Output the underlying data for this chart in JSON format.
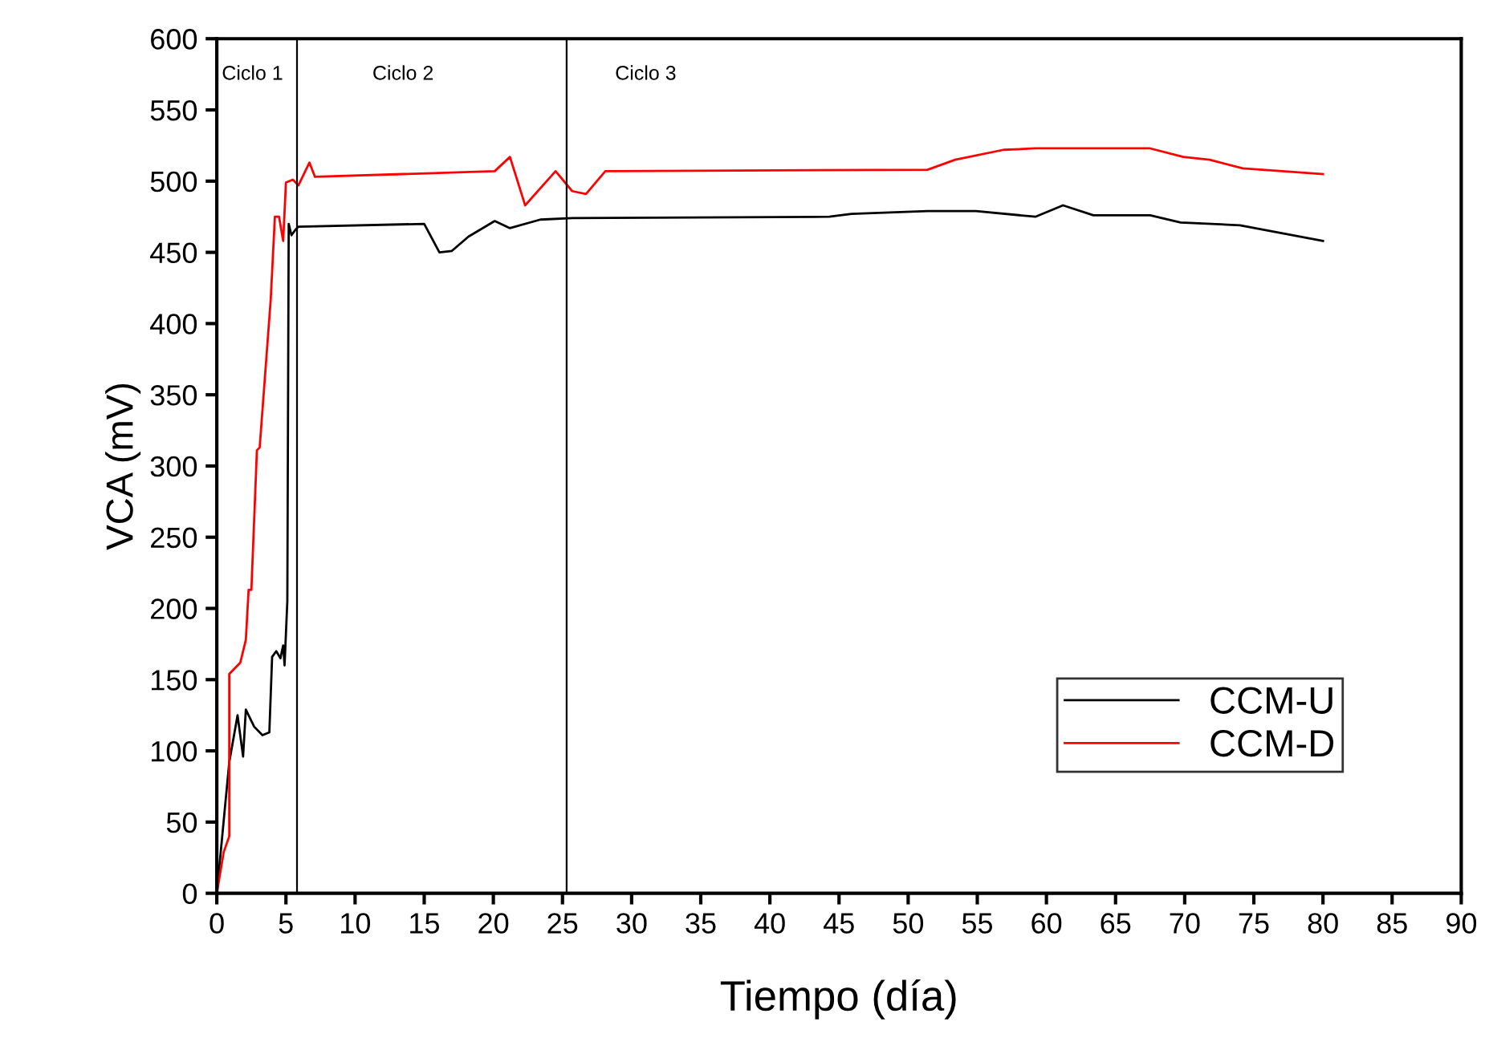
{
  "chart_data": {
    "type": "line",
    "xlabel": "Tiempo (día)",
    "ylabel": "VCA (mV)",
    "xlim": [
      0,
      90
    ],
    "xticks": [
      0,
      5,
      10,
      15,
      20,
      25,
      30,
      35,
      40,
      45,
      50,
      55,
      60,
      65,
      70,
      75,
      80,
      85,
      90
    ],
    "ylim": [
      0,
      600
    ],
    "yticks": [
      0,
      50,
      100,
      150,
      200,
      250,
      300,
      350,
      400,
      450,
      500,
      550,
      600
    ],
    "grid": false,
    "legend": "lower right",
    "marker": "none",
    "line_style": "solid",
    "series": [
      {
        "name": "CCM-U",
        "color": "#000000",
        "x": [
          0,
          0.9,
          1.5,
          1.9,
          2.1,
          2.7,
          3.3,
          3.8,
          4.0,
          4.3,
          4.6,
          4.8,
          4.9,
          5.1,
          5.2,
          5.4,
          5.7,
          5.9,
          15.0,
          16.1,
          17.0,
          18.2,
          20.1,
          21.2,
          23.4,
          25.7,
          44.3,
          45.9,
          51.4,
          54.9,
          59.2,
          61.2,
          63.4,
          67.5,
          69.7,
          74.0,
          80.0
        ],
        "values": [
          0,
          92,
          125,
          96,
          129,
          117,
          111,
          113,
          166,
          170,
          165,
          174,
          160,
          205,
          470,
          462,
          466,
          468,
          470,
          450,
          451,
          461,
          472,
          467,
          473,
          474,
          475,
          477,
          479,
          479,
          475,
          483,
          476,
          476,
          471,
          469,
          458
        ]
      },
      {
        "name": "CCM-D",
        "color": "#ff0000",
        "x": [
          0,
          0.5,
          0.9,
          0.9,
          1.7,
          2.1,
          2.3,
          2.5,
          2.9,
          3.1,
          3.9,
          4.2,
          4.5,
          4.8,
          5.0,
          5.5,
          5.9,
          6.7,
          7.1,
          20.1,
          21.2,
          22.3,
          24.5,
          25.7,
          26.7,
          28.1,
          51.4,
          53.4,
          56.9,
          59.2,
          67.5,
          69.9,
          71.8,
          74.2,
          80.0
        ],
        "values": [
          0,
          29,
          40,
          154,
          162,
          178,
          213,
          213,
          311,
          313,
          417,
          475,
          475,
          458,
          499,
          501,
          497,
          513,
          503,
          507,
          517,
          483,
          507,
          493,
          491,
          507,
          508,
          515,
          522,
          523,
          523,
          517,
          515,
          509,
          505
        ]
      }
    ],
    "ref_lines": [
      {
        "axis": "x",
        "value": 5.8
      },
      {
        "axis": "x",
        "value": 25.3
      }
    ],
    "annotations": [
      "Ciclo 1",
      "Ciclo 2",
      "Ciclo 3"
    ]
  }
}
